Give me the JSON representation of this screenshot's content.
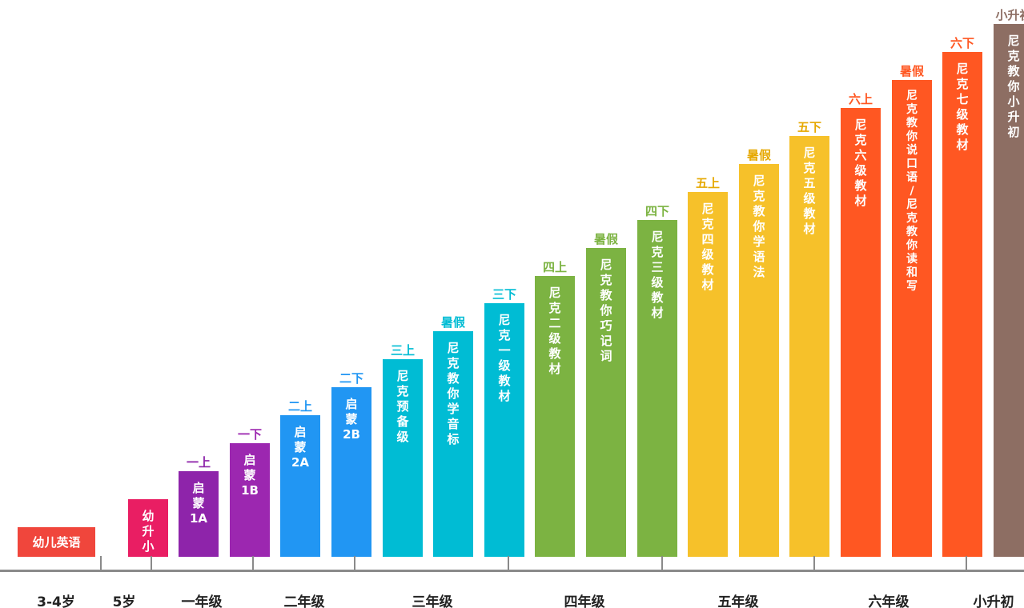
{
  "chart_data": {
    "type": "bar",
    "bars": [
      {
        "label": "幼儿英语",
        "semester": "",
        "color": "#f0463c",
        "level": 1
      },
      {
        "label": "幼\n升\n小",
        "semester": "",
        "color": "#e91e63",
        "level": 2
      },
      {
        "label": "启\n蒙\n1A",
        "semester": "一上",
        "color": "#8e24aa",
        "level": 3
      },
      {
        "label": "启\n蒙\n1B",
        "semester": "一下",
        "color": "#9c27b0",
        "level": 4
      },
      {
        "label": "启\n蒙\n2A",
        "semester": "二上",
        "color": "#2196f3",
        "level": 5
      },
      {
        "label": "启\n蒙\n2B",
        "semester": "二下",
        "color": "#2196f3",
        "level": 6
      },
      {
        "label": "尼\n克\n预\n备\n级",
        "semester": "三上",
        "color": "#00bcd4",
        "level": 7
      },
      {
        "label": "尼\n克\n教\n你\n学\n音\n标",
        "semester": "暑假",
        "color": "#00bcd4",
        "level": 8
      },
      {
        "label": "尼\n克\n一\n级\n教\n材",
        "semester": "三下",
        "color": "#00bcd4",
        "level": 9
      },
      {
        "label": "尼\n克\n二\n级\n教\n材",
        "semester": "四上",
        "color": "#7cb342",
        "level": 10
      },
      {
        "label": "尼\n克\n教\n你\n巧\n记\n词",
        "semester": "暑假",
        "color": "#7cb342",
        "level": 11
      },
      {
        "label": "尼\n克\n三\n级\n教\n材",
        "semester": "四下",
        "color": "#7cb342",
        "level": 12
      },
      {
        "label": "尼\n克\n四\n级\n教\n材",
        "semester": "五上",
        "color": "#f6c12a",
        "level": 13
      },
      {
        "label": "尼\n克\n教\n你\n学\n语\n法",
        "semester": "暑假",
        "color": "#f6c12a",
        "level": 14
      },
      {
        "label": "尼\n克\n五\n级\n教\n材",
        "semester": "五下",
        "color": "#f6c12a",
        "level": 15
      },
      {
        "label": "尼\n克\n六\n级\n教\n材",
        "semester": "六上",
        "color": "#ff5722",
        "level": 16
      },
      {
        "label": "尼\n克\n教\n你\n说\n口\n语\n/\n尼\n克\n教\n你\n读\n和\n写",
        "semester": "暑假",
        "color": "#ff5722",
        "level": 17
      },
      {
        "label": "尼\n克\n七\n级\n教\n材",
        "semester": "六下",
        "color": "#ff5722",
        "level": 18
      },
      {
        "label": "尼\n克\n教\n你\n小\n升\n初",
        "semester": "小升初",
        "color": "#8d6e63",
        "level": 19
      }
    ],
    "semester_colors": {
      "一上": "#8e24aa",
      "一下": "#9c27b0",
      "二上": "#2196f3",
      "二下": "#2196f3",
      "三上": "#00bcd4",
      "三下": "#00bcd4",
      "四上": "#7cb342",
      "四下": "#7cb342",
      "五上": "#e6a800",
      "五下": "#e6a800",
      "六上": "#ff5722",
      "六下": "#ff5722",
      "小升初": "#8d6e63"
    },
    "summer_colors": [
      "#00bcd4",
      "#7cb342",
      "#e6a800",
      "#ff5722"
    ],
    "grades": [
      "3-4岁",
      "5岁",
      "一年级",
      "二年级",
      "三年级",
      "四年级",
      "五年级",
      "六年级",
      "小升初"
    ]
  }
}
